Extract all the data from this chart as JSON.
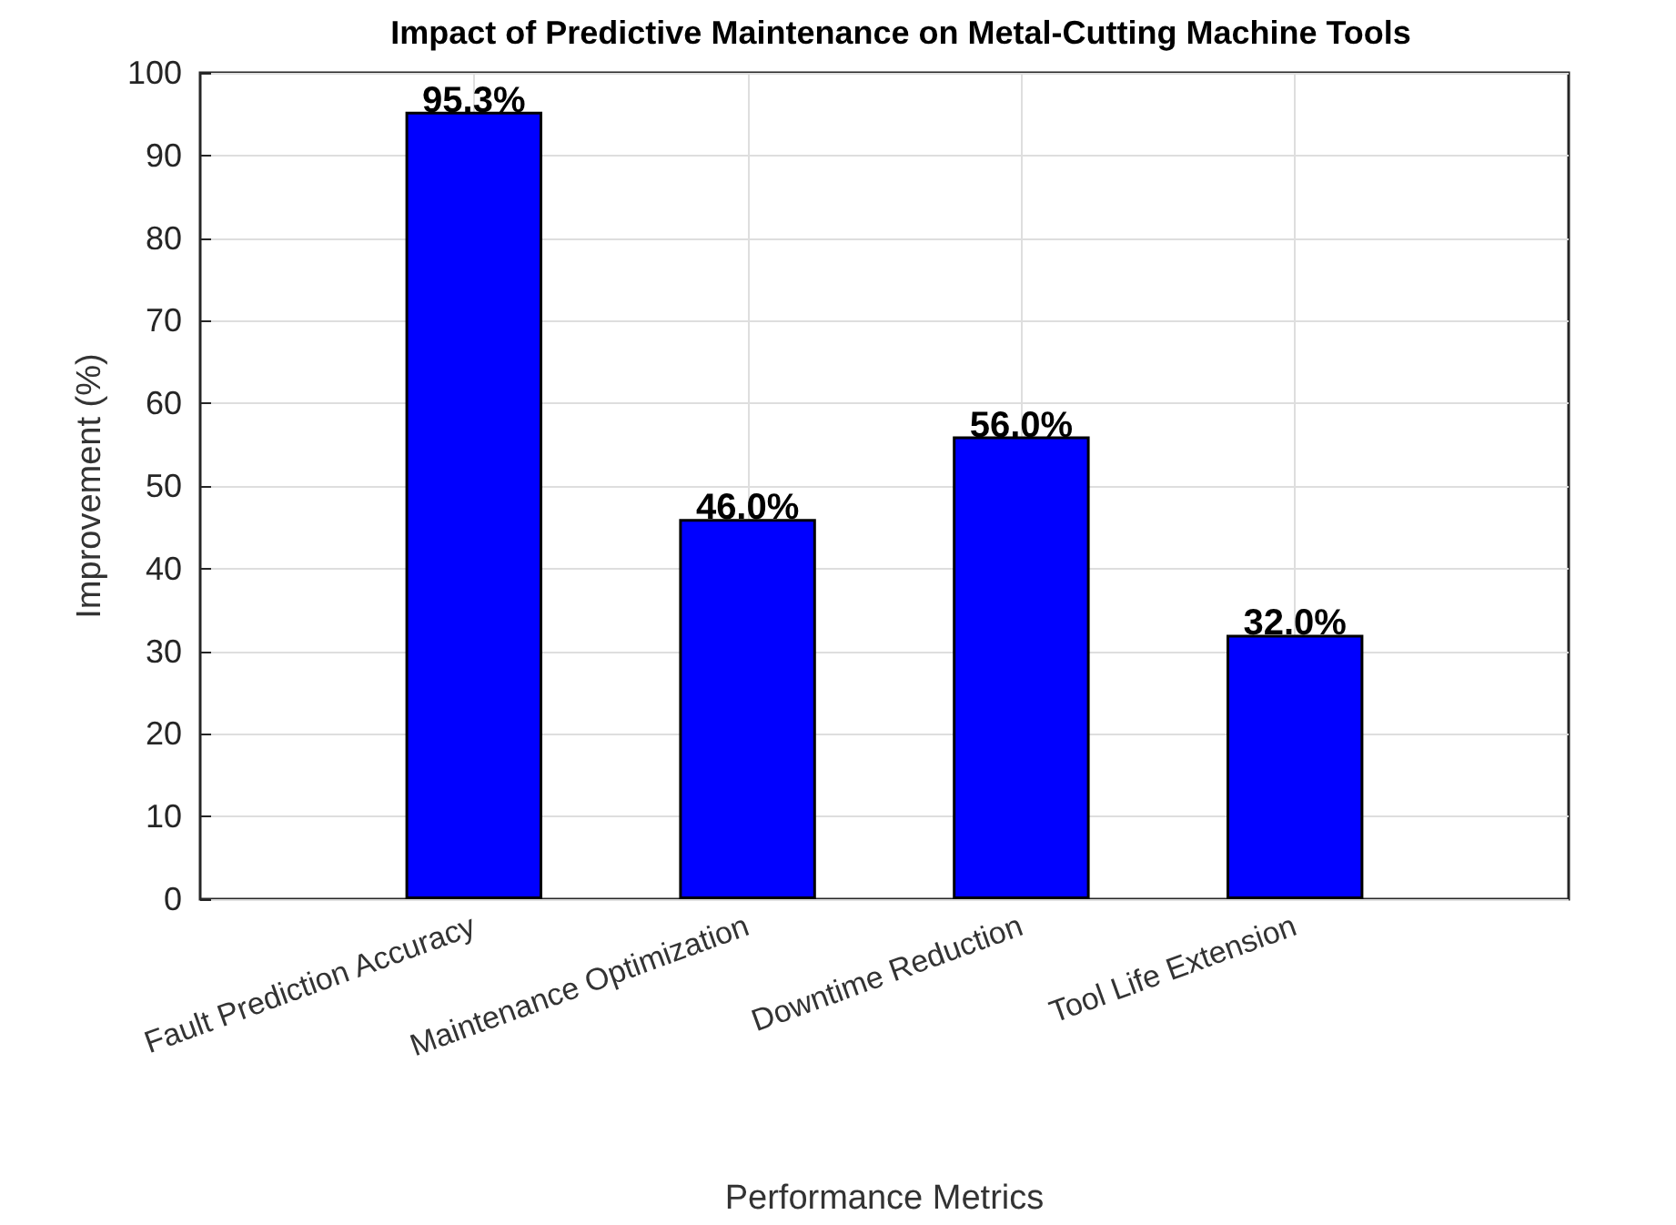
{
  "chart_data": {
    "type": "bar",
    "title": "Impact of Predictive Maintenance on Metal-Cutting Machine Tools",
    "xlabel": "Performance Metrics",
    "ylabel": "Improvement (%)",
    "categories": [
      "Fault Prediction Accuracy",
      "Maintenance Optimization",
      "Downtime Reduction",
      "Tool Life Extension"
    ],
    "values": [
      95.3,
      46.0,
      56.0,
      32.0
    ],
    "color": "#0000ff",
    "value_labels": [
      "95.3%",
      "46.0%",
      "56.0%",
      "32.0%"
    ],
    "ylim": [
      0,
      100
    ],
    "yticks": [
      0,
      10,
      20,
      30,
      40,
      50,
      60,
      70,
      80,
      90,
      100
    ],
    "grid": true
  }
}
